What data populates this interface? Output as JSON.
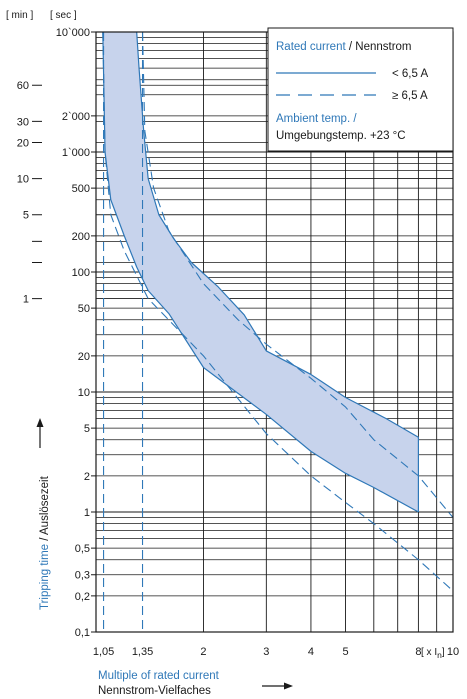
{
  "chart_data": {
    "type": "line",
    "scale": {
      "x": "log",
      "y": "log"
    },
    "xlim": [
      1,
      10
    ],
    "ylim": [
      0.1,
      10000
    ],
    "x_ticks": [
      1.05,
      1.35,
      2,
      3,
      4,
      5,
      8,
      10
    ],
    "x_tick_labels": [
      "1,05",
      "1,35",
      "2",
      "3",
      "4",
      "5",
      "8",
      "10"
    ],
    "y_ticks": [
      0.1,
      0.2,
      0.3,
      0.5,
      1,
      2,
      5,
      10,
      20,
      50,
      100,
      200,
      500,
      1000,
      2000,
      10000
    ],
    "y_tick_labels": [
      "0,1",
      "0,2",
      "0,3",
      "0,5",
      "1",
      "2",
      "5",
      "10",
      "20",
      "50",
      "100",
      "200",
      "500",
      "1`000",
      "2`000",
      "10`000"
    ],
    "min_axis_ticks": [
      {
        "label": "60",
        "seconds": 3600
      },
      {
        "label": "30",
        "seconds": 1800
      },
      {
        "label": "20",
        "seconds": 1200
      },
      {
        "label": "10",
        "seconds": 600
      },
      {
        "label": "5",
        "seconds": 300
      },
      {
        "label": "",
        "seconds": 180
      },
      {
        "label": "",
        "seconds": 120
      },
      {
        "label": "1",
        "seconds": 60
      }
    ],
    "unit_left": "[ min ]",
    "unit_right": "[ sec ]",
    "x_unit_label": "[ x I",
    "x_unit_sub": "n",
    "x_unit_close": "]",
    "xlabel": {
      "blue": "Multiple of rated current",
      "black": "Nennstrom-Vielfaches"
    },
    "ylabel": {
      "blue": "Tripping time",
      "black": " / Auslösezeit"
    },
    "legend": {
      "title_blue": "Rated current",
      "title_black": " / Nennstrom",
      "entries": [
        {
          "style": "solid",
          "label": "< 6,5 A"
        },
        {
          "style": "dashed",
          "label": "≥ 6,5 A"
        }
      ],
      "note_blue": "Ambient temp. /",
      "note_black": "Umgebungstemp. +23 °C"
    },
    "series": [
      {
        "name": "< 6,5 A",
        "role": "band-upper",
        "style": "solid",
        "points": [
          [
            1.3,
            10000
          ],
          [
            1.32,
            5000
          ],
          [
            1.36,
            1500
          ],
          [
            1.4,
            600
          ],
          [
            1.5,
            300
          ],
          [
            1.65,
            190
          ],
          [
            1.85,
            120
          ],
          [
            2.2,
            75
          ],
          [
            2.6,
            44
          ],
          [
            3.0,
            22
          ],
          [
            4.0,
            14
          ],
          [
            5.0,
            9
          ],
          [
            6.5,
            6
          ],
          [
            8.0,
            4.2
          ]
        ]
      },
      {
        "name": "< 6,5 A",
        "role": "band-lower",
        "style": "solid",
        "points": [
          [
            1.045,
            10000
          ],
          [
            1.06,
            1000
          ],
          [
            1.1,
            400
          ],
          [
            1.2,
            200
          ],
          [
            1.3,
            110
          ],
          [
            1.4,
            70
          ],
          [
            1.6,
            45
          ],
          [
            2.0,
            16
          ],
          [
            3.0,
            6.5
          ],
          [
            4.0,
            3.2
          ],
          [
            5.0,
            2.1
          ],
          [
            6.0,
            1.6
          ],
          [
            8.0,
            1.0
          ]
        ]
      },
      {
        "name": "≥ 6,5 A",
        "role": "upper",
        "style": "dashed",
        "points": [
          [
            1.35,
            10000
          ],
          [
            1.37,
            1500
          ],
          [
            1.45,
            500
          ],
          [
            1.6,
            220
          ],
          [
            2.0,
            80
          ],
          [
            2.5,
            40
          ],
          [
            3.0,
            25
          ],
          [
            4.0,
            13
          ],
          [
            5.0,
            7.5
          ],
          [
            6.0,
            4.0
          ],
          [
            8.0,
            2.0
          ],
          [
            10.0,
            0.9
          ]
        ]
      },
      {
        "name": "≥ 6,5 A",
        "role": "lower",
        "style": "dashed",
        "points": [
          [
            1.045,
            10000
          ],
          [
            1.06,
            1000
          ],
          [
            1.1,
            300
          ],
          [
            1.2,
            150
          ],
          [
            1.4,
            60
          ],
          [
            2.0,
            20
          ],
          [
            3.0,
            4.5
          ],
          [
            4.0,
            2.0
          ],
          [
            5.0,
            1.2
          ],
          [
            6.0,
            0.8
          ],
          [
            8.0,
            0.4
          ],
          [
            10.0,
            0.22
          ]
        ]
      }
    ],
    "markers_x": [
      1.05,
      1.35
    ],
    "colors": {
      "band_fill": "#c7d3ec",
      "curve": "#2f78b8",
      "grid": "#1a1a1a",
      "blue_text": "#2f78b8"
    }
  }
}
